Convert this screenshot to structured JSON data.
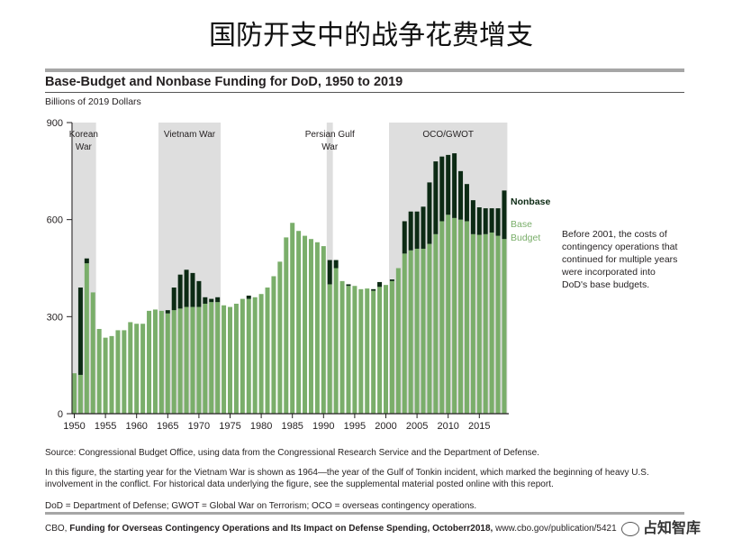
{
  "slide_title": "国防开支中的战争花费增支",
  "chart_title": "Base-Budget and Nonbase Funding for DoD, 1950 to 2019",
  "units": "Billions of 2019 Dollars",
  "source": "Source: Congressional Budget Office, using data from the Congressional Research Service and the Department of Defense.",
  "note": "In this figure, the starting year for the Vietnam War is shown as 1964—the year of the Gulf of Tonkin incident, which marked the beginning of heavy U.S. involvement in the conflict. For historical data underlying the figure, see the supplemental material posted online with this report.",
  "abbrev": "DoD = Department of Defense; GWOT = Global War on Terrorism; OCO = overseas contingency operations.",
  "citation_prefix": "CBO, ",
  "citation_title": "Funding for Overseas Contingency Operations and Its Impact on Defense Spending,",
  "citation_date": "Octoberr2018,",
  "citation_url": "www.cbo.gov/publication/5421",
  "watermark": "占知智库",
  "colors": {
    "base": "#7aae6a",
    "nonbase": "#0c2a14",
    "shade": "#dedede",
    "axis": "#231f20"
  },
  "chart_data": {
    "type": "bar",
    "stacked": true,
    "xlabel": "",
    "ylabel": "",
    "ylim": [
      0,
      900
    ],
    "yticks": [
      0,
      300,
      600,
      900
    ],
    "xticks": [
      1950,
      1955,
      1960,
      1965,
      1970,
      1975,
      1980,
      1985,
      1990,
      1995,
      2000,
      2005,
      2010,
      2015
    ],
    "years": [
      1950,
      1951,
      1952,
      1953,
      1954,
      1955,
      1956,
      1957,
      1958,
      1959,
      1960,
      1961,
      1962,
      1963,
      1964,
      1965,
      1966,
      1967,
      1968,
      1969,
      1970,
      1971,
      1972,
      1973,
      1974,
      1975,
      1976,
      1977,
      1978,
      1979,
      1980,
      1981,
      1982,
      1983,
      1984,
      1985,
      1986,
      1987,
      1988,
      1989,
      1990,
      1991,
      1992,
      1993,
      1994,
      1995,
      1996,
      1997,
      1998,
      1999,
      2000,
      2001,
      2002,
      2003,
      2004,
      2005,
      2006,
      2007,
      2008,
      2009,
      2010,
      2011,
      2012,
      2013,
      2014,
      2015,
      2016,
      2017,
      2018,
      2019
    ],
    "series": [
      {
        "name": "Base Budget",
        "values": [
          125,
          120,
          465,
          375,
          262,
          235,
          240,
          258,
          258,
          283,
          278,
          278,
          318,
          322,
          318,
          310,
          320,
          325,
          330,
          330,
          330,
          340,
          345,
          345,
          335,
          330,
          340,
          355,
          355,
          360,
          370,
          390,
          425,
          470,
          545,
          590,
          565,
          550,
          540,
          530,
          518,
          400,
          450,
          410,
          395,
          395,
          385,
          387,
          380,
          392,
          398,
          410,
          450,
          495,
          505,
          510,
          510,
          525,
          555,
          595,
          615,
          605,
          600,
          595,
          555,
          553,
          555,
          560,
          550,
          540
        ]
      },
      {
        "name": "Nonbase",
        "values": [
          0,
          270,
          15,
          0,
          0,
          0,
          0,
          0,
          0,
          0,
          0,
          0,
          0,
          0,
          0,
          10,
          70,
          105,
          115,
          105,
          80,
          20,
          10,
          15,
          0,
          0,
          0,
          0,
          10,
          0,
          0,
          0,
          0,
          0,
          0,
          0,
          0,
          0,
          0,
          0,
          0,
          75,
          25,
          0,
          5,
          0,
          0,
          0,
          5,
          15,
          0,
          5,
          0,
          100,
          120,
          115,
          130,
          190,
          225,
          200,
          185,
          200,
          150,
          115,
          105,
          85,
          80,
          75,
          85,
          150
        ]
      }
    ],
    "shaded_periods": [
      {
        "label": "Korean War",
        "start": 1950,
        "end": 1953
      },
      {
        "label": "Vietnam War",
        "start": 1964,
        "end": 1973
      },
      {
        "label": "Persian Gulf War",
        "start": 1991,
        "end": 1991
      },
      {
        "label": "OCO/GWOT",
        "start": 2001,
        "end": 2019
      }
    ],
    "legend_labels": {
      "nonbase": "Nonbase",
      "base": "Base Budget"
    },
    "annotation": "Before 2001, the costs of contingency operations that continued for multiple years were incorporated into DoD's base budgets."
  }
}
